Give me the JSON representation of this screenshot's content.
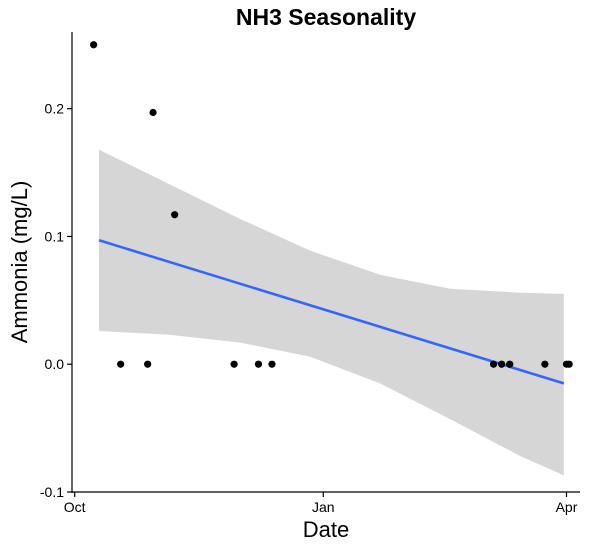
{
  "chart_data": {
    "type": "scatter",
    "title": "NH3 Seasonality",
    "xlabel": "Date",
    "ylabel": "Ammonia (mg/L)",
    "x_axis_type": "date",
    "xlim": [
      "2020-09-30",
      "2021-04-06"
    ],
    "ylim": [
      -0.1,
      0.26
    ],
    "x_ticks": [
      {
        "label": "Oct",
        "date": "2020-10-01"
      },
      {
        "label": "Jan",
        "date": "2021-01-01"
      },
      {
        "label": "Apr",
        "date": "2021-04-01"
      }
    ],
    "y_ticks": [
      {
        "label": "-0.1",
        "value": -0.1
      },
      {
        "label": "0.0",
        "value": 0.0
      },
      {
        "label": "0.1",
        "value": 0.1
      },
      {
        "label": "0.2",
        "value": 0.2
      }
    ],
    "points": [
      {
        "x": "2020-10-08",
        "y": 0.25
      },
      {
        "x": "2020-10-18",
        "y": 0.0
      },
      {
        "x": "2020-10-28",
        "y": 0.0
      },
      {
        "x": "2020-10-30",
        "y": 0.197
      },
      {
        "x": "2020-11-07",
        "y": 0.117
      },
      {
        "x": "2020-11-29",
        "y": 0.0
      },
      {
        "x": "2020-12-08",
        "y": 0.0
      },
      {
        "x": "2020-12-13",
        "y": 0.0
      },
      {
        "x": "2021-03-05",
        "y": 0.0
      },
      {
        "x": "2021-03-08",
        "y": 0.0
      },
      {
        "x": "2021-03-11",
        "y": 0.0
      },
      {
        "x": "2021-03-24",
        "y": 0.0
      },
      {
        "x": "2021-04-01",
        "y": 0.0
      },
      {
        "x": "2021-04-02",
        "y": 0.0
      }
    ],
    "trend_line": {
      "type": "linear",
      "color": "#3366ff",
      "start": {
        "x": "2020-10-10",
        "y": 0.097
      },
      "end": {
        "x": "2021-03-31",
        "y": -0.015
      }
    },
    "confidence_band": {
      "color": "#d6d6d6",
      "dates": [
        "2020-10-10",
        "2020-11-05",
        "2020-12-01",
        "2020-12-27",
        "2021-01-22",
        "2021-02-17",
        "2021-03-15",
        "2021-03-31"
      ],
      "upper": [
        0.168,
        0.141,
        0.114,
        0.089,
        0.07,
        0.059,
        0.056,
        0.055
      ],
      "lower": [
        0.026,
        0.023,
        0.017,
        0.006,
        -0.015,
        -0.043,
        -0.072,
        -0.087
      ]
    },
    "grid": false,
    "legend": "none"
  }
}
